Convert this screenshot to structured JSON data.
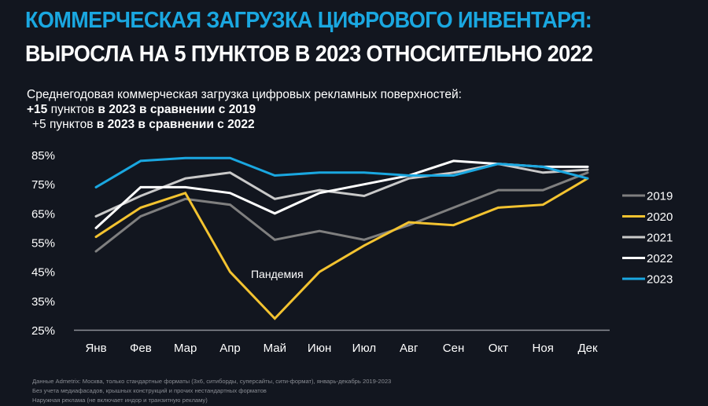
{
  "header": {
    "title_line1": "КОММЕРЧЕСКАЯ ЗАГРУЗКА ЦИФРОВОГО ИНВЕНТАРЯ:",
    "title_line2": "ВЫРОСЛА НА 5 ПУНКТОВ В 2023 ОТНОСИТЕЛЬНО 2022"
  },
  "subtitle": {
    "line1": "Среднегодовая коммерческая загрузка цифровых рекламных поверхностей:",
    "line2_value": "+15",
    "line2_unit": " пунктов ",
    "line2_rest": "в 2023 в сравнении с 2019",
    "line3_value": "+5",
    "line3_unit": " пунктов ",
    "line3_rest": "в 2023 в сравнении с 2022"
  },
  "footnotes": [
    "Данные Admetrix: Москва, только стандартные форматы (3х6, ситиборды, суперсайты, сити-формат), январь-декабрь 2019-2023",
    "Без учета медиафасадов, крышных конструкций и прочих нестандартных форматов",
    "Наружная реклама (не включает индор и транзитную рекламу)"
  ],
  "chart_data": {
    "type": "line",
    "title": "",
    "xlabel": "",
    "ylabel": "",
    "categories": [
      "Янв",
      "Фев",
      "Мар",
      "Апр",
      "Май",
      "Июн",
      "Июл",
      "Авг",
      "Сен",
      "Окт",
      "Ноя",
      "Дек"
    ],
    "ylim": [
      25,
      85
    ],
    "yticks": [
      85,
      75,
      65,
      55,
      45,
      35,
      25
    ],
    "ytick_labels": [
      "85%",
      "75%",
      "65%",
      "55%",
      "45%",
      "35%",
      "25%"
    ],
    "grid": false,
    "legend_position": "right",
    "series": [
      {
        "name": "2019",
        "color": "#7f7f7f",
        "values": [
          52,
          64,
          70,
          68,
          56,
          59,
          56,
          61,
          67,
          73,
          73,
          79
        ]
      },
      {
        "name": "2020",
        "color": "#f3c330",
        "values": [
          57,
          67,
          72,
          45,
          29,
          45,
          54,
          62,
          61,
          67,
          68,
          77
        ]
      },
      {
        "name": "2021",
        "color": "#c9c9c9",
        "values": [
          64,
          71,
          77,
          79,
          70,
          73,
          71,
          77,
          79,
          82,
          79,
          80
        ]
      },
      {
        "name": "2022",
        "color": "#ffffff",
        "values": [
          60,
          74,
          74,
          72,
          65,
          72,
          75,
          78,
          83,
          82,
          81,
          81
        ]
      },
      {
        "name": "2023",
        "color": "#1aa7e0",
        "values": [
          74,
          83,
          84,
          84,
          78,
          79,
          79,
          78,
          78,
          82,
          81,
          77
        ]
      }
    ],
    "annotations": [
      {
        "text": "Пандемия",
        "series": "2020",
        "near_category": "Май"
      }
    ]
  }
}
